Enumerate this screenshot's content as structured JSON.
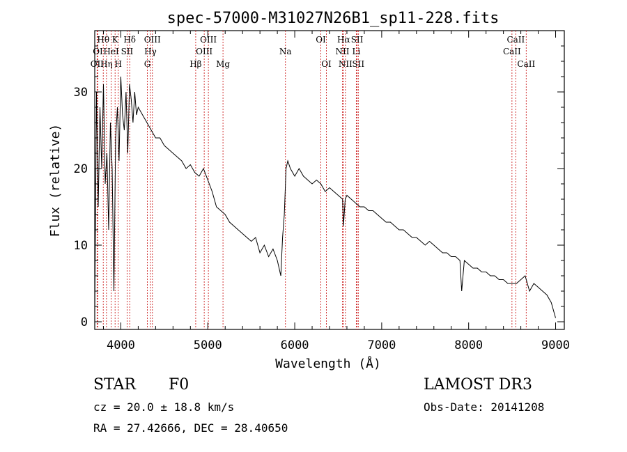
{
  "chart_data": {
    "type": "line",
    "title": "spec-57000-M31027N26B1_sp11-228.fits",
    "xlabel": "Wavelength (Å)",
    "ylabel": "Flux (relative)",
    "xlim": [
      3700,
      9100
    ],
    "ylim": [
      -1,
      38
    ],
    "xticks": [
      4000,
      5000,
      6000,
      7000,
      8000,
      9000
    ],
    "yticks": [
      0,
      10,
      20,
      30
    ],
    "line_color": "#000000",
    "marker_color": "#cc2222",
    "series": [
      {
        "name": "flux",
        "x": [
          3700,
          3720,
          3740,
          3760,
          3780,
          3800,
          3820,
          3840,
          3860,
          3880,
          3900,
          3920,
          3940,
          3960,
          3980,
          4000,
          4020,
          4040,
          4060,
          4080,
          4100,
          4120,
          4140,
          4160,
          4180,
          4200,
          4250,
          4300,
          4350,
          4400,
          4450,
          4500,
          4550,
          4600,
          4650,
          4700,
          4750,
          4800,
          4850,
          4900,
          4950,
          5000,
          5050,
          5100,
          5150,
          5200,
          5250,
          5300,
          5350,
          5400,
          5450,
          5500,
          5550,
          5600,
          5650,
          5700,
          5750,
          5800,
          5840,
          5860,
          5880,
          5900,
          5920,
          5950,
          6000,
          6050,
          6100,
          6150,
          6200,
          6250,
          6300,
          6350,
          6400,
          6450,
          6500,
          6550,
          6560,
          6580,
          6600,
          6650,
          6700,
          6750,
          6800,
          6850,
          6900,
          6950,
          7000,
          7050,
          7100,
          7150,
          7200,
          7250,
          7300,
          7350,
          7400,
          7450,
          7500,
          7550,
          7600,
          7650,
          7700,
          7750,
          7800,
          7850,
          7900,
          7920,
          7950,
          8000,
          8050,
          8100,
          8150,
          8200,
          8250,
          8300,
          8350,
          8400,
          8450,
          8500,
          8550,
          8600,
          8650,
          8700,
          8750,
          8800,
          8850,
          8900,
          8950,
          9000
        ],
        "y": [
          1,
          30,
          15,
          28,
          20,
          31,
          18,
          22,
          12,
          26,
          20,
          4,
          24,
          28,
          21,
          32,
          27,
          25,
          30,
          22,
          31,
          29,
          26,
          30,
          27,
          28,
          27,
          26,
          25,
          24,
          24,
          23,
          22.5,
          22,
          21.5,
          21,
          20,
          20.5,
          19.5,
          19,
          20,
          18.5,
          17,
          15,
          14.5,
          14,
          13,
          12.5,
          12,
          11.5,
          11,
          10.5,
          11,
          9,
          10,
          8.5,
          9.5,
          8,
          6,
          11,
          14,
          20,
          21,
          20,
          19,
          20,
          19,
          18.5,
          18,
          18.5,
          18,
          17,
          17.5,
          17,
          16.5,
          16,
          12.5,
          16,
          16.5,
          16,
          15.5,
          15,
          15,
          14.5,
          14.5,
          14,
          13.5,
          13,
          13,
          12.5,
          12,
          12,
          11.5,
          11,
          11,
          10.5,
          10,
          10.5,
          10,
          9.5,
          9,
          9,
          8.5,
          8.5,
          8,
          4,
          8,
          7.5,
          7,
          7,
          6.5,
          6.5,
          6,
          6,
          5.5,
          5.5,
          5,
          5,
          5,
          5.5,
          6,
          4,
          5,
          4.5,
          4,
          3.5,
          2.5,
          0.5
        ]
      }
    ],
    "lines": [
      {
        "name": "OII",
        "x": 3727,
        "label": "OII",
        "row": 2
      },
      {
        "name": "OI",
        "x": 3736,
        "label": "OI",
        "row": 1
      },
      {
        "name": "Hη",
        "x": 3835,
        "label": "Hη",
        "row": 2
      },
      {
        "name": "Hθ",
        "x": 3798,
        "label": "Hθ",
        "row": 0
      },
      {
        "name": "HeI",
        "x": 3889,
        "label": "HeI",
        "row": 1
      },
      {
        "name": "K",
        "x": 3934,
        "label": "K",
        "row": 0
      },
      {
        "name": "H",
        "x": 3970,
        "label": "H",
        "row": 2
      },
      {
        "name": "SII",
        "x": 4072,
        "label": "SII",
        "row": 1
      },
      {
        "name": "Hδ",
        "x": 4102,
        "label": "Hδ",
        "row": 0
      },
      {
        "name": "G",
        "x": 4305,
        "label": "G",
        "row": 2
      },
      {
        "name": "Hγ",
        "x": 4341,
        "label": "Hγ",
        "row": 1
      },
      {
        "name": "OIII",
        "x": 4363,
        "label": "OIII",
        "row": 0
      },
      {
        "name": "Hβ",
        "x": 4861,
        "label": "Hβ",
        "row": 2
      },
      {
        "name": "OIII",
        "x": 4959,
        "label": "OIII",
        "row": 1
      },
      {
        "name": "OIII",
        "x": 5007,
        "label": "OIII",
        "row": 0
      },
      {
        "name": "Mg",
        "x": 5175,
        "label": "Mg",
        "row": 2
      },
      {
        "name": "Na",
        "x": 5893,
        "label": "Na",
        "row": 1
      },
      {
        "name": "OI",
        "x": 6300,
        "label": "OI",
        "row": 0
      },
      {
        "name": "OI",
        "x": 6364,
        "label": "OI",
        "row": 2
      },
      {
        "name": "NII",
        "x": 6548,
        "label": "NII",
        "row": 1
      },
      {
        "name": "Hα",
        "x": 6563,
        "label": "Hα",
        "row": 0
      },
      {
        "name": "NII",
        "x": 6583,
        "label": "NII",
        "row": 2
      },
      {
        "name": "Li",
        "x": 6708,
        "label": "Li",
        "row": 1
      },
      {
        "name": "SII",
        "x": 6717,
        "label": "SII",
        "row": 0
      },
      {
        "name": "SII",
        "x": 6731,
        "label": "SII",
        "row": 2
      },
      {
        "name": "CaII",
        "x": 8498,
        "label": "CaII",
        "row": 1
      },
      {
        "name": "CaII",
        "x": 8542,
        "label": "CaII",
        "row": 0
      },
      {
        "name": "CaII",
        "x": 8662,
        "label": "CaII",
        "row": 2
      }
    ]
  },
  "info": {
    "class_label": "STAR",
    "subclass": "F0",
    "cz": "cz = 20.0 ± 18.8 km/s",
    "coords": "RA =  27.42666, DEC =  28.40650",
    "survey": "LAMOST DR3",
    "obs_date": "Obs-Date: 20141208"
  }
}
